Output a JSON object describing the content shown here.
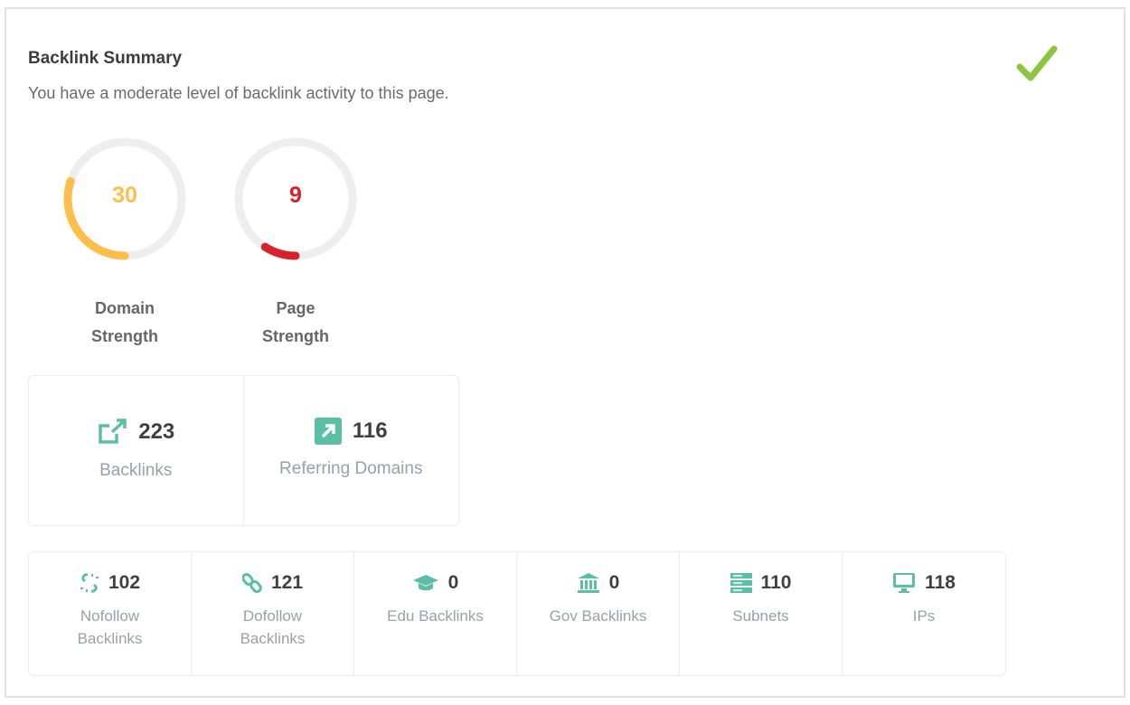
{
  "header": {
    "title": "Backlink Summary",
    "subtitle": "You have a moderate level of backlink activity to this page.",
    "status_icon": "check-icon",
    "status_color": "#8cc63f"
  },
  "gauges": [
    {
      "label": "Domain Strength",
      "value": "30",
      "percent": 30,
      "color": "#ffbd4a"
    },
    {
      "label": "Page Strength",
      "value": "9",
      "percent": 9,
      "color": "#d9212b"
    }
  ],
  "primary": [
    {
      "icon": "external-link-icon",
      "value": "223",
      "label": "Backlinks"
    },
    {
      "icon": "arrow-up-right-square-icon",
      "value": "116",
      "label": "Referring Domains"
    }
  ],
  "secondary": [
    {
      "icon": "broken-link-icon",
      "value": "102",
      "label": "Nofollow Backlinks"
    },
    {
      "icon": "link-icon",
      "value": "121",
      "label": "Dofollow Backlinks"
    },
    {
      "icon": "graduation-cap-icon",
      "value": "0",
      "label": "Edu Backlinks"
    },
    {
      "icon": "bank-icon",
      "value": "0",
      "label": "Gov Backlinks"
    },
    {
      "icon": "server-icon",
      "value": "110",
      "label": "Subnets"
    },
    {
      "icon": "monitor-icon",
      "value": "118",
      "label": "IPs"
    }
  ],
  "accent": "#5bbfa6"
}
